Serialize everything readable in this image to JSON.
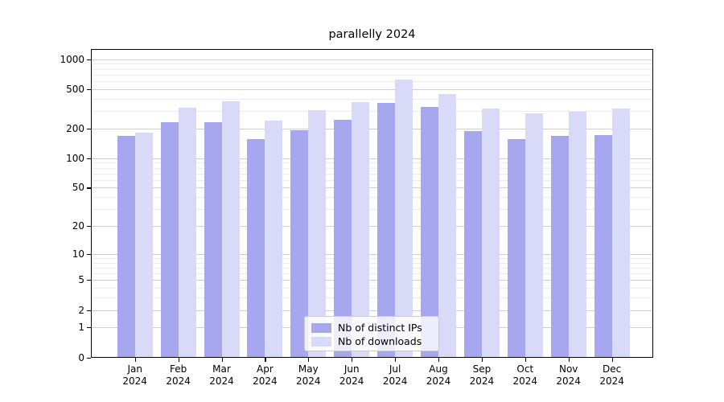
{
  "chart_data": {
    "type": "bar",
    "title": "parallelly 2024",
    "categories": [
      "Jan",
      "Feb",
      "Mar",
      "Apr",
      "May",
      "Jun",
      "Jul",
      "Aug",
      "Sep",
      "Oct",
      "Nov",
      "Dec"
    ],
    "year_label": "2024",
    "series": [
      {
        "name": "Nb of distinct IPs",
        "color": "#a7a7f0",
        "values": [
          168,
          230,
          231,
          155,
          192,
          246,
          360,
          331,
          187,
          156,
          169,
          173
        ]
      },
      {
        "name": "Nb of downloads",
        "color": "#d9d9f8",
        "values": [
          183,
          322,
          377,
          240,
          307,
          371,
          621,
          444,
          318,
          286,
          293,
          320
        ]
      }
    ],
    "xlabel": "",
    "ylabel": "",
    "y_axis": {
      "scale": "log1p",
      "ticks": [
        1000,
        500,
        200,
        100,
        50,
        20,
        10,
        5,
        2,
        1,
        0
      ],
      "minor_gridlines": [
        900,
        800,
        700,
        600,
        400,
        300,
        90,
        80,
        70,
        60,
        40,
        30,
        9,
        8,
        7,
        6,
        4,
        3
      ],
      "ylim": [
        0,
        1000
      ]
    },
    "grid": true,
    "legend_position": "lower center inside",
    "colors": {
      "major_grid": "#cfcfcf",
      "minor_grid": "#ececec",
      "axis": "#000000",
      "background": "#ffffff"
    }
  }
}
